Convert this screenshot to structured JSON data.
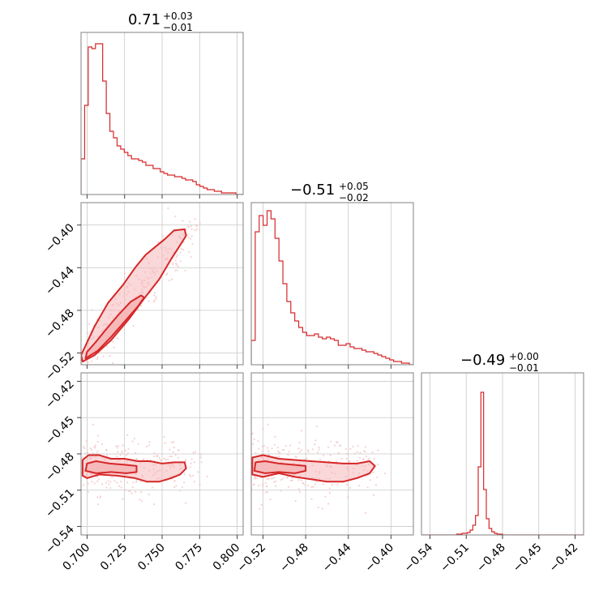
{
  "colors": {
    "series": "#d62728",
    "fill": "#f5b7b8",
    "scatter": "#f3c2c3",
    "grid": "#c8c8c8",
    "frame": "#808080"
  },
  "chart_data": [
    {
      "type": "histogram",
      "panel": "p00",
      "title": {
        "median": "0.71",
        "upper": "+0.03",
        "lower": "−0.01"
      },
      "xlim": [
        0.696,
        0.804
      ],
      "ylim": [
        0,
        1.0
      ],
      "bins_start": 0.696,
      "bins_end": 0.804,
      "values": [
        0.22,
        0.55,
        0.91,
        0.9,
        0.93,
        0.93,
        0.7,
        0.5,
        0.39,
        0.35,
        0.3,
        0.28,
        0.26,
        0.24,
        0.22,
        0.22,
        0.21,
        0.2,
        0.18,
        0.18,
        0.16,
        0.16,
        0.14,
        0.13,
        0.12,
        0.12,
        0.11,
        0.11,
        0.1,
        0.09,
        0.09,
        0.08,
        0.06,
        0.05,
        0.04,
        0.03,
        0.03,
        0.02,
        0.02,
        0.01,
        0.01,
        0.01,
        0.01,
        0.0,
        0.0
      ]
    },
    {
      "type": "histogram",
      "panel": "p11",
      "title": {
        "median": "−0.51",
        "upper": "+0.05",
        "lower": "−0.02"
      },
      "xlim": [
        -0.531,
        -0.379
      ],
      "ylim": [
        0,
        1.0
      ],
      "bins_start": -0.531,
      "bins_end": -0.379,
      "values": [
        0.15,
        0.82,
        0.92,
        0.86,
        0.95,
        0.9,
        0.78,
        0.64,
        0.5,
        0.39,
        0.32,
        0.27,
        0.23,
        0.2,
        0.18,
        0.18,
        0.19,
        0.17,
        0.16,
        0.17,
        0.16,
        0.15,
        0.12,
        0.12,
        0.13,
        0.11,
        0.1,
        0.1,
        0.09,
        0.08,
        0.08,
        0.07,
        0.06,
        0.05,
        0.04,
        0.03,
        0.02,
        0.02,
        0.01,
        0.01,
        0.0
      ]
    },
    {
      "type": "histogram",
      "panel": "p22",
      "title": {
        "median": "−0.49",
        "upper": "+0.00",
        "lower": "−0.01"
      },
      "xlim": [
        -0.547,
        -0.413
      ],
      "ylim": [
        0,
        1.0
      ],
      "bins_start": -0.547,
      "bins_end": -0.413,
      "values": [
        0,
        0,
        0,
        0,
        0,
        0,
        0,
        0,
        0,
        0,
        0,
        0,
        0,
        0.005,
        0.005,
        0.01,
        0.01,
        0.015,
        0.03,
        0.06,
        0.12,
        0.42,
        0.88,
        0.28,
        0.1,
        0.04,
        0.02,
        0.01,
        0.005,
        0.005,
        0,
        0,
        0,
        0,
        0,
        0,
        0,
        0,
        0,
        0,
        0,
        0,
        0,
        0,
        0,
        0,
        0,
        0,
        0,
        0,
        0,
        0,
        0,
        0,
        0,
        0,
        0,
        0,
        0,
        0
      ]
    },
    {
      "type": "scatter",
      "panel": "p10",
      "note": "2D posterior contours (x: param 0, y: param 1)",
      "xlim": [
        0.696,
        0.804
      ],
      "ylim": [
        -0.531,
        -0.379
      ],
      "contour_outer": [
        [
          0.697,
          -0.528
        ],
        [
          0.705,
          -0.522
        ],
        [
          0.716,
          -0.508
        ],
        [
          0.728,
          -0.488
        ],
        [
          0.738,
          -0.469
        ],
        [
          0.748,
          -0.451
        ],
        [
          0.756,
          -0.432
        ],
        [
          0.762,
          -0.419
        ],
        [
          0.766,
          -0.41
        ],
        [
          0.765,
          -0.404
        ],
        [
          0.758,
          -0.405
        ],
        [
          0.752,
          -0.413
        ],
        [
          0.745,
          -0.421
        ],
        [
          0.739,
          -0.428
        ],
        [
          0.732,
          -0.44
        ],
        [
          0.724,
          -0.456
        ],
        [
          0.714,
          -0.473
        ],
        [
          0.705,
          -0.495
        ],
        [
          0.699,
          -0.513
        ],
        [
          0.696,
          -0.522
        ]
      ],
      "contour_inner": [
        [
          0.699,
          -0.525
        ],
        [
          0.707,
          -0.518
        ],
        [
          0.716,
          -0.505
        ],
        [
          0.726,
          -0.489
        ],
        [
          0.734,
          -0.476
        ],
        [
          0.738,
          -0.468
        ],
        [
          0.736,
          -0.466
        ],
        [
          0.729,
          -0.472
        ],
        [
          0.721,
          -0.484
        ],
        [
          0.712,
          -0.499
        ],
        [
          0.705,
          -0.511
        ],
        [
          0.7,
          -0.519
        ]
      ],
      "band": {
        "x0": 0.697,
        "y0": -0.528,
        "x1": 0.775,
        "y1": -0.398,
        "halfwidth": 0.012
      }
    },
    {
      "type": "scatter",
      "panel": "p20",
      "note": "2D posterior contours (x: param 0, y: param 2)",
      "xlim": [
        0.696,
        0.804
      ],
      "ylim": [
        -0.547,
        -0.413
      ],
      "contour_outer": [
        [
          0.697,
          -0.498
        ],
        [
          0.7,
          -0.5
        ],
        [
          0.708,
          -0.497
        ],
        [
          0.72,
          -0.498
        ],
        [
          0.732,
          -0.5
        ],
        [
          0.74,
          -0.503
        ],
        [
          0.748,
          -0.503
        ],
        [
          0.756,
          -0.5
        ],
        [
          0.762,
          -0.497
        ],
        [
          0.766,
          -0.492
        ],
        [
          0.765,
          -0.487
        ],
        [
          0.758,
          -0.487
        ],
        [
          0.75,
          -0.488
        ],
        [
          0.742,
          -0.486
        ],
        [
          0.734,
          -0.486
        ],
        [
          0.725,
          -0.484
        ],
        [
          0.716,
          -0.484
        ],
        [
          0.708,
          -0.481
        ],
        [
          0.701,
          -0.481
        ],
        [
          0.697,
          -0.485
        ]
      ],
      "contour_inner": [
        [
          0.699,
          -0.494
        ],
        [
          0.706,
          -0.496
        ],
        [
          0.716,
          -0.495
        ],
        [
          0.726,
          -0.496
        ],
        [
          0.733,
          -0.495
        ],
        [
          0.733,
          -0.49
        ],
        [
          0.725,
          -0.489
        ],
        [
          0.715,
          -0.488
        ],
        [
          0.706,
          -0.486
        ],
        [
          0.7,
          -0.488
        ]
      ],
      "band": {
        "x0": 0.697,
        "y0": -0.492,
        "x1": 0.775,
        "y1": -0.492,
        "halfwidth": 0.012
      }
    },
    {
      "type": "scatter",
      "panel": "p21",
      "note": "2D posterior contours (x: param 1, y: param 2)",
      "xlim": [
        -0.531,
        -0.379
      ],
      "ylim": [
        -0.547,
        -0.413
      ],
      "contour_outer": [
        [
          -0.53,
          -0.497
        ],
        [
          -0.52,
          -0.499
        ],
        [
          -0.505,
          -0.496
        ],
        [
          -0.49,
          -0.499
        ],
        [
          -0.475,
          -0.501
        ],
        [
          -0.46,
          -0.503
        ],
        [
          -0.445,
          -0.503
        ],
        [
          -0.432,
          -0.5
        ],
        [
          -0.42,
          -0.496
        ],
        [
          -0.415,
          -0.49
        ],
        [
          -0.42,
          -0.486
        ],
        [
          -0.432,
          -0.488
        ],
        [
          -0.445,
          -0.488
        ],
        [
          -0.46,
          -0.487
        ],
        [
          -0.475,
          -0.486
        ],
        [
          -0.49,
          -0.485
        ],
        [
          -0.505,
          -0.484
        ],
        [
          -0.52,
          -0.481
        ],
        [
          -0.53,
          -0.483
        ]
      ],
      "contour_inner": [
        [
          -0.528,
          -0.494
        ],
        [
          -0.518,
          -0.496
        ],
        [
          -0.505,
          -0.495
        ],
        [
          -0.49,
          -0.496
        ],
        [
          -0.48,
          -0.494
        ],
        [
          -0.48,
          -0.49
        ],
        [
          -0.492,
          -0.489
        ],
        [
          -0.505,
          -0.488
        ],
        [
          -0.518,
          -0.486
        ],
        [
          -0.527,
          -0.487
        ]
      ],
      "band": {
        "x0": -0.529,
        "y0": -0.492,
        "x1": -0.41,
        "y1": -0.492,
        "halfwidth": 0.012
      }
    }
  ],
  "axes": {
    "col0": {
      "domain": [
        0.696,
        0.804
      ],
      "ticks": [
        0.7,
        0.725,
        0.75,
        0.775,
        0.8
      ],
      "labels": [
        "0.700",
        "0.725",
        "0.750",
        "0.775",
        "0.800"
      ]
    },
    "col1": {
      "domain": [
        -0.531,
        -0.379
      ],
      "ticks": [
        -0.52,
        -0.48,
        -0.44,
        -0.4
      ],
      "labels": [
        "−0.52",
        "−0.48",
        "−0.44",
        "−0.40"
      ]
    },
    "col2": {
      "domain": [
        -0.547,
        -0.413
      ],
      "ticks": [
        -0.54,
        -0.51,
        -0.48,
        -0.45,
        -0.42
      ],
      "labels": [
        "−0.54",
        "−0.51",
        "−0.48",
        "−0.45",
        "−0.42"
      ]
    },
    "row1": {
      "domain": [
        -0.531,
        -0.379
      ],
      "ticks": [
        -0.52,
        -0.48,
        -0.44,
        -0.4
      ],
      "labels": [
        "−0.52",
        "−0.48",
        "−0.44",
        "−0.40"
      ]
    },
    "row2": {
      "domain": [
        -0.547,
        -0.413
      ],
      "ticks": [
        -0.54,
        -0.51,
        -0.48,
        -0.45,
        -0.42
      ],
      "labels": [
        "−0.54",
        "−0.51",
        "−0.48",
        "−0.45",
        "−0.42"
      ]
    }
  }
}
